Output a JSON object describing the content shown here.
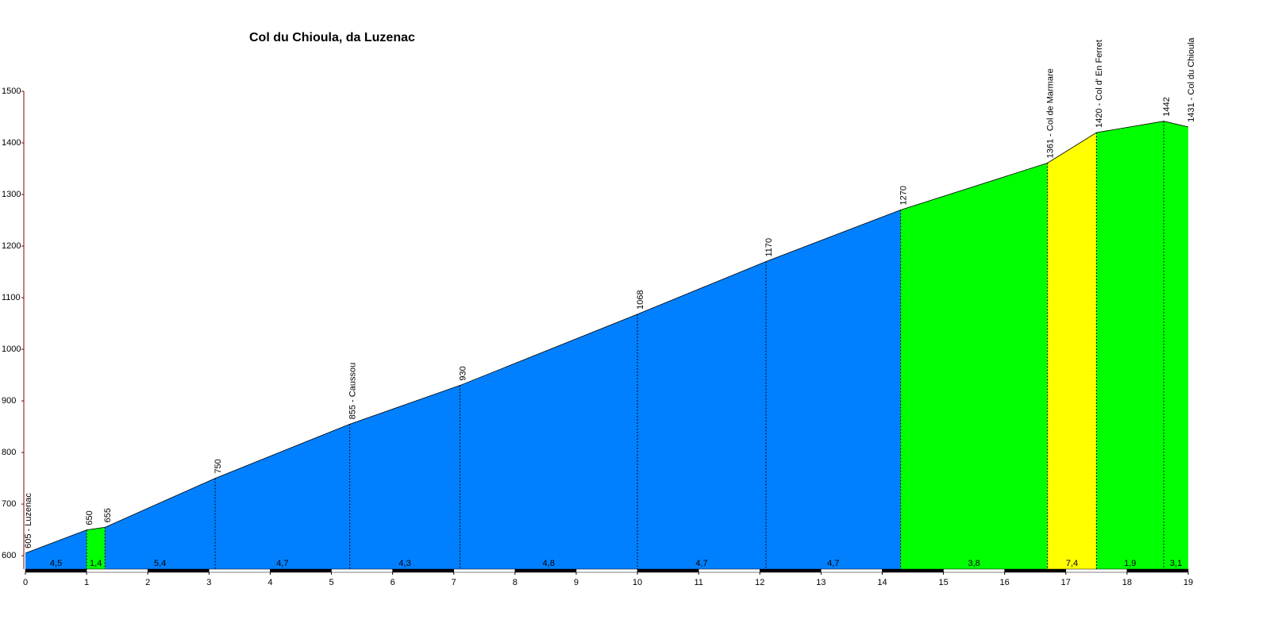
{
  "chart_data": {
    "type": "area",
    "title": "Col du Chioula, da Luzenac",
    "x": [
      0,
      1.0,
      1.3,
      3.1,
      5.3,
      7.1,
      10.0,
      12.1,
      14.3,
      16.7,
      17.5,
      18.6,
      19.0
    ],
    "elevations": [
      605,
      650,
      655,
      750,
      855,
      930,
      1068,
      1170,
      1270,
      1361,
      1420,
      1442,
      1431
    ],
    "point_labels": [
      "605 - Luzenac",
      "650",
      "655",
      "750",
      "855 - Caussou",
      "930",
      "1068",
      "1170",
      "1270",
      "1361 - Col de Marmare",
      "1420 - Col d' En Ferret",
      "1442",
      "1431 - Col du Chioula"
    ],
    "gradients": [
      4.5,
      1.4,
      5.4,
      4.7,
      4.3,
      4.8,
      4.7,
      4.7,
      3.8,
      7.4,
      1.9,
      3.1
    ],
    "gradient_labels": [
      "4,5",
      "1,4",
      "5,4",
      "4,7",
      "4,3",
      "4,8",
      "4,7",
      "4,7",
      "3,8",
      "7,4",
      "1,9",
      "3,1"
    ],
    "segment_colors": [
      "#0080ff",
      "#00ff00",
      "#0080ff",
      "#0080ff",
      "#0080ff",
      "#0080ff",
      "#0080ff",
      "#0080ff",
      "#00ff00",
      "#ffff00",
      "#00ff00",
      "#00ff00"
    ],
    "xlim": [
      0,
      19
    ],
    "xticks": [
      0,
      1,
      2,
      3,
      4,
      5,
      6,
      7,
      8,
      9,
      10,
      11,
      12,
      13,
      14,
      15,
      16,
      17,
      18,
      19
    ],
    "ylim": [
      574,
      1500
    ],
    "yticks": [
      600,
      700,
      800,
      900,
      1000,
      1100,
      1200,
      1300,
      1400,
      1500
    ]
  }
}
